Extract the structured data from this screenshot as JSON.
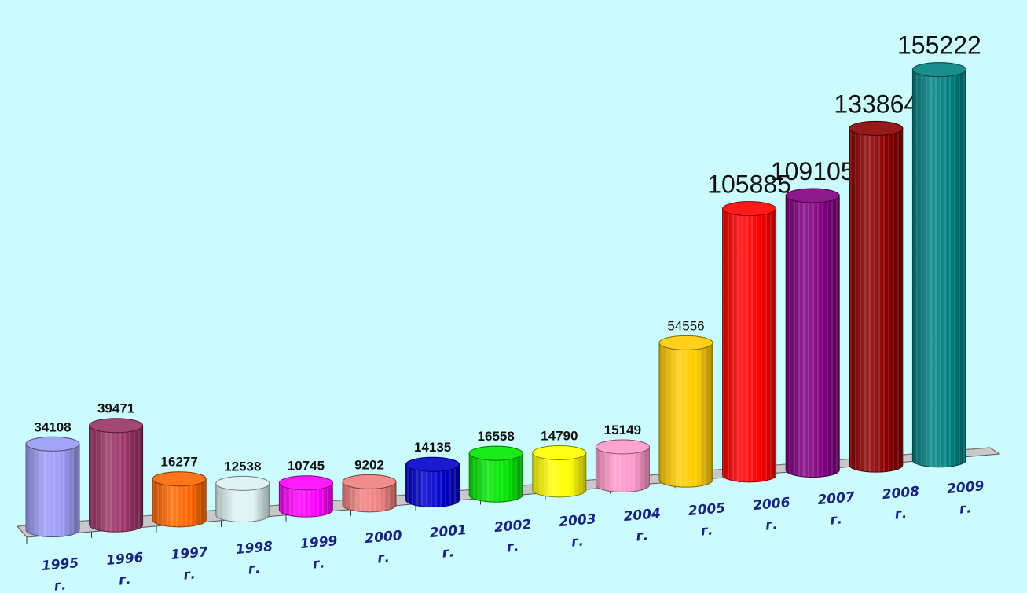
{
  "chart_data": {
    "type": "bar",
    "categories": [
      "1995 г.",
      "1996 г.",
      "1997 г.",
      "1998 г.",
      "1999 г.",
      "2000 г.",
      "2001 г.",
      "2002 г.",
      "2003 г.",
      "2004 г.",
      "2005 г.",
      "2006 г.",
      "2007 г.",
      "2008 г.",
      "2009 г."
    ],
    "category_years": [
      "1995",
      "1996",
      "1997",
      "1998",
      "1999",
      "2000",
      "2001",
      "2002",
      "2003",
      "2004",
      "2005",
      "2006",
      "2007",
      "2008",
      "2009"
    ],
    "category_suffix": "г.",
    "values": [
      34108,
      39471,
      16277,
      12538,
      10745,
      9202,
      14135,
      16558,
      14790,
      15149,
      54556,
      105885,
      109105,
      133864,
      155222
    ],
    "data_labels": [
      "34108",
      "39471",
      "16277",
      "12538",
      "10745",
      "9202",
      "14135",
      "16558",
      "14790",
      "15149",
      "54556",
      "105885",
      "109105",
      "133864",
      "155222"
    ],
    "bar_colors": [
      "#9a9af5",
      "#993366",
      "#ff6600",
      "#ddf2f2",
      "#ff00ff",
      "#f08080",
      "#0000cc",
      "#00e600",
      "#ffff00",
      "#ff99cc",
      "#ffcc00",
      "#ff0000",
      "#800080",
      "#8b0000",
      "#008080"
    ],
    "title": "",
    "xlabel": "",
    "ylabel": "",
    "ylim": [
      0,
      160000
    ],
    "grid": false,
    "legend": "none",
    "style": "3d-cylinder"
  },
  "colors": {
    "background": "#ccfbfd",
    "floor": "#c8c8c8",
    "tick_label": "#1a237e"
  }
}
